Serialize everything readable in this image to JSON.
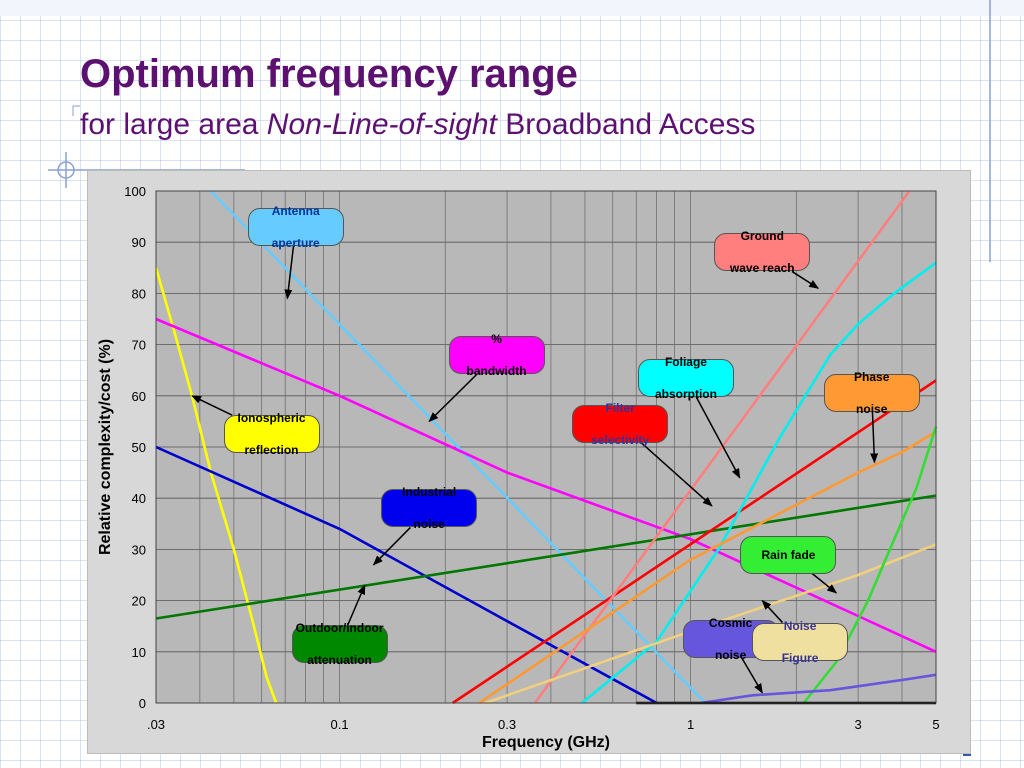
{
  "slide": {
    "title": "Optimum frequency range",
    "subtitle_pre": "for large area ",
    "subtitle_em": "Non-Line-of-sight",
    "subtitle_post": " Broadband Access"
  },
  "colors": {
    "title": "#5c1070",
    "plot_bg": "#b8b8b8",
    "frame_bg": "#d8d8d8"
  },
  "chart_data": {
    "type": "line",
    "title": "",
    "xlabel": "Frequency (GHz)",
    "ylabel": "Relative complexity/cost (%)",
    "xscale": "log",
    "xlim": [
      0.03,
      5
    ],
    "ylim": [
      0,
      100
    ],
    "grid": true,
    "xticks": [
      {
        "value": 0.03,
        "label": ".03"
      },
      {
        "value": 0.1,
        "label": "0.1"
      },
      {
        "value": 0.3,
        "label": "0.3"
      },
      {
        "value": 1,
        "label": "1"
      },
      {
        "value": 3,
        "label": "3"
      },
      {
        "value": 5,
        "label": "5"
      }
    ],
    "yticks": [
      0,
      10,
      20,
      30,
      40,
      50,
      60,
      70,
      80,
      90,
      100
    ],
    "series": [
      {
        "color": "#ffff00",
        "points": [
          [
            0.03,
            85
          ],
          [
            0.034,
            72
          ],
          [
            0.038,
            60
          ],
          [
            0.043,
            45
          ],
          [
            0.05,
            30
          ],
          [
            0.057,
            15
          ],
          [
            0.062,
            5
          ],
          [
            0.066,
            0
          ]
        ]
      },
      {
        "color": "#66ccff",
        "points": [
          [
            0.043,
            100
          ],
          [
            1.1,
            0
          ]
        ]
      },
      {
        "color": "#ff00ff",
        "points": [
          [
            0.03,
            75
          ],
          [
            0.1,
            60
          ],
          [
            0.3,
            45
          ],
          [
            1,
            32
          ],
          [
            3,
            17
          ],
          [
            5,
            10
          ]
        ]
      },
      {
        "color": "#0000cc",
        "points": [
          [
            0.03,
            50
          ],
          [
            0.1,
            34
          ],
          [
            0.3,
            16
          ],
          [
            0.8,
            0
          ]
        ]
      },
      {
        "color": "#007700",
        "points": [
          [
            0.03,
            16.5
          ],
          [
            5,
            40.5
          ]
        ]
      },
      {
        "color": "#ff0000",
        "points": [
          [
            0.21,
            0
          ],
          [
            5,
            63
          ]
        ]
      },
      {
        "color": "#ff7f7f",
        "points": [
          [
            0.36,
            0
          ],
          [
            4.2,
            100
          ]
        ]
      },
      {
        "color": "#00eeee",
        "points": [
          [
            0.49,
            0
          ],
          [
            0.8,
            12
          ],
          [
            1.2,
            30
          ],
          [
            1.8,
            52
          ],
          [
            2.5,
            68
          ],
          [
            3,
            74
          ],
          [
            3.8,
            80
          ],
          [
            5,
            86
          ]
        ]
      },
      {
        "color": "#ff9933",
        "points": [
          [
            0.25,
            0
          ],
          [
            1,
            28
          ],
          [
            3,
            45
          ],
          [
            4,
            49
          ],
          [
            5,
            53
          ]
        ]
      },
      {
        "color": "#f0d080",
        "points": [
          [
            0.26,
            0
          ],
          [
            1,
            14
          ],
          [
            3,
            25
          ],
          [
            5,
            31
          ]
        ]
      },
      {
        "color": "#33dd33",
        "points": [
          [
            2.1,
            0
          ],
          [
            2.6,
            8
          ],
          [
            3.2,
            20
          ],
          [
            3.8,
            32
          ],
          [
            4.4,
            42
          ],
          [
            5,
            54
          ]
        ]
      },
      {
        "color": "#6655dd",
        "points": [
          [
            1.07,
            0
          ],
          [
            1.5,
            1.5
          ],
          [
            2.5,
            2.5
          ],
          [
            4,
            4.5
          ],
          [
            5,
            5.5
          ]
        ]
      },
      {
        "color": "#000000",
        "points": [
          [
            0.7,
            0
          ],
          [
            5,
            0
          ]
        ]
      }
    ],
    "annotations": [
      {
        "lines": [
          "Antenna",
          "aperture"
        ],
        "bg": "#66ccff",
        "fg": "#003399",
        "box_x": 0.075,
        "box_y": 93,
        "arrow_to": [
          0.071,
          79
        ]
      },
      {
        "lines": [
          "Ground",
          "wave reach"
        ],
        "bg": "#ff7f7f",
        "fg": "#000000",
        "box_x": 1.6,
        "box_y": 88,
        "arrow_to": [
          2.31,
          81
        ]
      },
      {
        "lines": [
          "%",
          "bandwidth"
        ],
        "bg": "#ff00ff",
        "fg": "#000000",
        "box_x": 0.28,
        "box_y": 68,
        "arrow_to": [
          0.18,
          55
        ]
      },
      {
        "lines": [
          "Foliage",
          "absorption"
        ],
        "bg": "#00ffff",
        "fg": "#000000",
        "box_x": 0.97,
        "box_y": 63.5,
        "arrow_to": [
          1.38,
          44
        ]
      },
      {
        "lines": [
          "Phase",
          "noise"
        ],
        "bg": "#ff9933",
        "fg": "#000000",
        "box_x": 3.28,
        "box_y": 60.5,
        "arrow_to": [
          3.34,
          47
        ]
      },
      {
        "lines": [
          "Filter",
          "selectivity"
        ],
        "bg": "#ff0000",
        "fg": "#333399",
        "box_x": 0.63,
        "box_y": 54.5,
        "arrow_to": [
          1.15,
          38.5
        ]
      },
      {
        "lines": [
          "Ionospheric",
          "reflection"
        ],
        "bg": "#ffff00",
        "fg": "#000000",
        "box_x": 0.064,
        "box_y": 52.5,
        "arrow_to": [
          0.038,
          60
        ]
      },
      {
        "lines": [
          "Industrial",
          "noise"
        ],
        "bg": "#0000ee",
        "fg": "#000000",
        "box_x": 0.18,
        "box_y": 38,
        "arrow_to": [
          0.125,
          27
        ]
      },
      {
        "lines": [
          "Rain fade"
        ],
        "bg": "#33ee33",
        "fg": "#000000",
        "box_x": 1.9,
        "box_y": 29,
        "arrow_to": [
          2.6,
          21.5
        ]
      },
      {
        "lines": [
          "Cosmic",
          "noise"
        ],
        "bg": "#6655dd",
        "fg": "#000000",
        "box_x": 1.3,
        "box_y": 12.5,
        "arrow_to": [
          1.6,
          2
        ]
      },
      {
        "lines": [
          "Noise",
          "Figure"
        ],
        "bg": "#f0e0a0",
        "fg": "#333399",
        "box_x": 2.05,
        "box_y": 12,
        "arrow_to": [
          1.6,
          20
        ]
      },
      {
        "lines": [
          "Outdoor/indoor",
          "attenuation"
        ],
        "bg": "#008800",
        "fg": "#000000",
        "box_x": 0.1,
        "box_y": 11.5,
        "arrow_to": [
          0.118,
          23
        ]
      }
    ]
  }
}
